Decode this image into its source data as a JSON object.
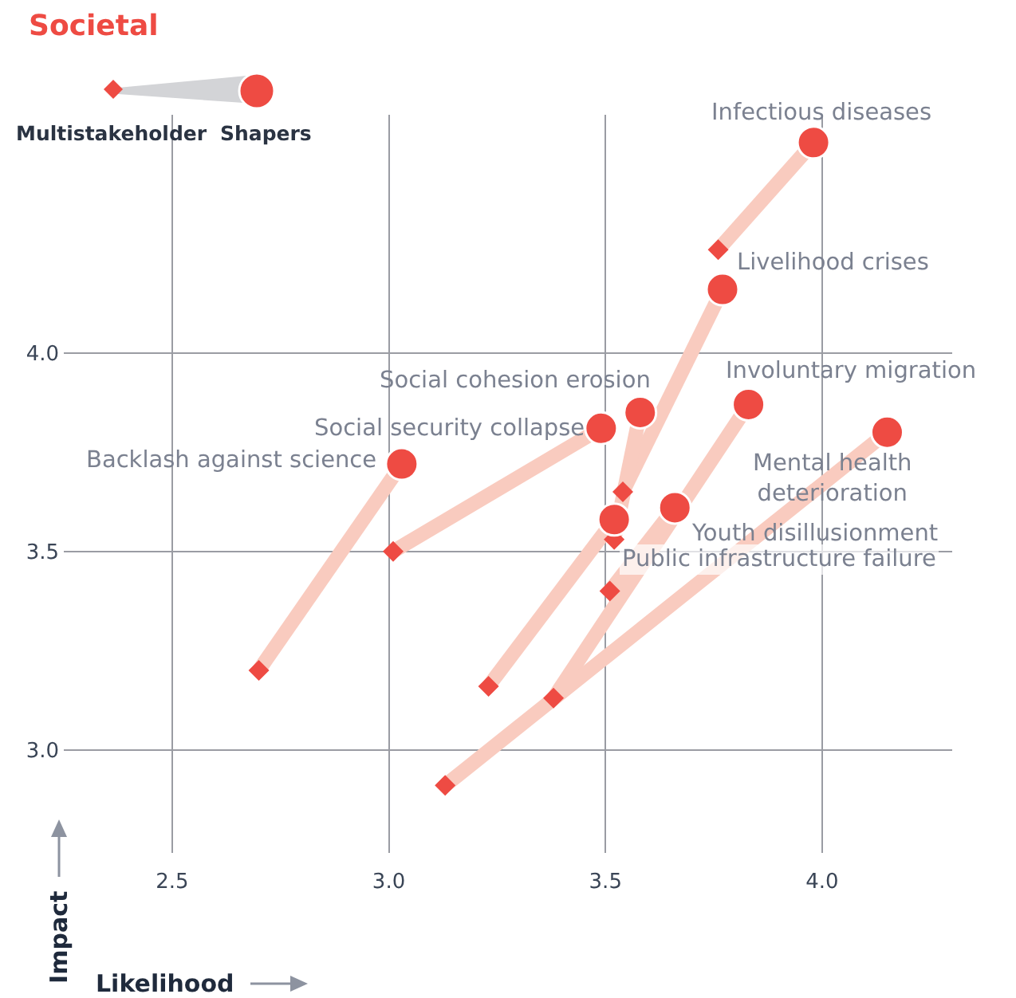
{
  "chart_data": {
    "type": "scatter",
    "title": "Societal",
    "xlabel": "Likelihood",
    "ylabel": "Impact",
    "xlim": [
      2.25,
      4.3
    ],
    "ylim": [
      2.74,
      4.6
    ],
    "xticks": [
      {
        "value": 2.5,
        "label": "2.5"
      },
      {
        "value": 3,
        "label": "3.0"
      },
      {
        "value": 3.5,
        "label": "3.5"
      },
      {
        "value": 4,
        "label": "4.0"
      }
    ],
    "yticks": [
      {
        "value": 3,
        "label": "3.0"
      },
      {
        "value": 3.5,
        "label": "3.5"
      },
      {
        "value": 4,
        "label": "4.0"
      }
    ],
    "grid": true,
    "legend": "top left",
    "series": [
      {
        "name": "Multistakeholder",
        "color": "#ee4b43",
        "marker": "diamond",
        "x": [
          3.76,
          3.54,
          3.52,
          3.01,
          2.7,
          3.38,
          3.13,
          3.51,
          3.23
        ],
        "values": [
          4.26,
          3.65,
          3.53,
          3.5,
          3.2,
          3.13,
          2.91,
          3.4,
          3.16
        ]
      },
      {
        "name": "Shapers",
        "color": "#ee4b43",
        "marker": "circle",
        "x": [
          3.98,
          3.77,
          3.58,
          3.49,
          3.03,
          3.83,
          4.15,
          3.66,
          3.52
        ],
        "values": [
          4.53,
          4.16,
          3.85,
          3.81,
          3.72,
          3.87,
          3.8,
          3.61,
          3.58
        ]
      },
      {
        "type": "line",
        "color": "#f9cbbf",
        "x": [
          3.76,
          3.98
        ],
        "values": [
          4.26,
          4.53
        ]
      },
      {
        "type": "line",
        "color": "#f9cbbf",
        "x": [
          3.54,
          3.77
        ],
        "values": [
          3.65,
          4.16
        ]
      },
      {
        "type": "line",
        "color": "#f9cbbf",
        "x": [
          3.52,
          3.58
        ],
        "values": [
          3.53,
          3.85
        ]
      },
      {
        "type": "line",
        "color": "#f9cbbf",
        "x": [
          3.01,
          3.49
        ],
        "values": [
          3.5,
          3.81
        ]
      },
      {
        "type": "line",
        "color": "#f9cbbf",
        "x": [
          2.7,
          3.03
        ],
        "values": [
          3.2,
          3.72
        ]
      },
      {
        "type": "line",
        "color": "#f9cbbf",
        "x": [
          3.38,
          3.83
        ],
        "values": [
          3.13,
          3.87
        ]
      },
      {
        "type": "line",
        "color": "#f9cbbf",
        "x": [
          3.13,
          4.15
        ],
        "values": [
          2.91,
          3.8
        ]
      },
      {
        "type": "line",
        "color": "#f9cbbf",
        "x": [
          3.51,
          3.66
        ],
        "values": [
          3.4,
          3.61
        ]
      },
      {
        "type": "line",
        "color": "#f9cbbf",
        "x": [
          3.23,
          3.52
        ],
        "values": [
          3.16,
          3.58
        ]
      }
    ],
    "annotations": [
      {
        "text": "Infectious diseases",
        "x": 3.98,
        "y": 4.53
      },
      {
        "text": "Livelihood crises",
        "x": 3.77,
        "y": 4.16
      },
      {
        "text": "Social cohesion erosion",
        "x": 3.58,
        "y": 3.85
      },
      {
        "text": "Social security collapse",
        "x": 3.49,
        "y": 3.81
      },
      {
        "text": "Backlash against science",
        "x": 3.03,
        "y": 3.72
      },
      {
        "text": "Involuntary migration",
        "x": 3.83,
        "y": 3.87
      },
      {
        "text": "Mental health\ndeterioration",
        "x": 4.15,
        "y": 3.8
      },
      {
        "text": "Youth disillusionment",
        "x": 3.66,
        "y": 3.61
      },
      {
        "text": "Public infrastructure failure",
        "x": 3.52,
        "y": 3.58
      }
    ]
  }
}
